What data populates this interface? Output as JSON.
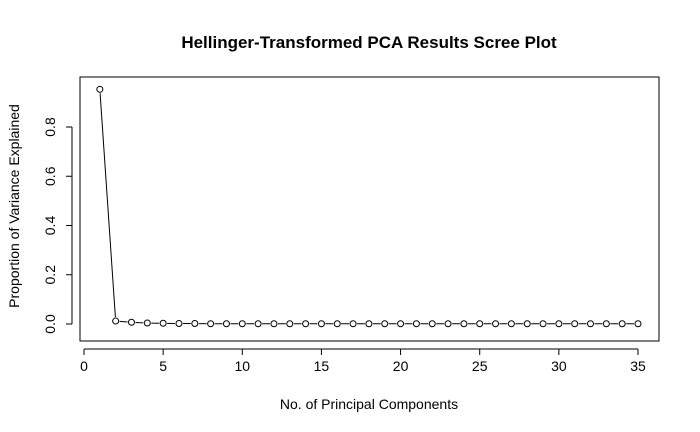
{
  "chart_data": {
    "type": "line",
    "title": "Hellinger-Transformed PCA Results Scree Plot",
    "xlabel": "No. of Principal Components",
    "ylabel": "Proportion of Variance Explained",
    "xlim": [
      0,
      35
    ],
    "ylim": [
      0,
      0.95
    ],
    "x_ticks": [
      0,
      5,
      10,
      15,
      20,
      25,
      30,
      35
    ],
    "y_ticks": [
      0.0,
      0.2,
      0.4,
      0.6,
      0.8
    ],
    "x_tick_labels": [
      "0",
      "5",
      "10",
      "15",
      "20",
      "25",
      "30",
      "35"
    ],
    "y_tick_labels": [
      "0.0",
      "0.2",
      "0.4",
      "0.6",
      "0.8"
    ],
    "grid": false,
    "marker": "open-circle",
    "line_color": "#000000",
    "x": [
      1,
      2,
      3,
      4,
      5,
      6,
      7,
      8,
      9,
      10,
      11,
      12,
      13,
      14,
      15,
      16,
      17,
      18,
      19,
      20,
      21,
      22,
      23,
      24,
      25,
      26,
      27,
      28,
      29,
      30,
      31,
      32,
      33,
      34,
      35
    ],
    "values": [
      0.953,
      0.012,
      0.007,
      0.004,
      0.003,
      0.002,
      0.002,
      0.001,
      0.001,
      0.001,
      0.001,
      0.001,
      0.001,
      0.001,
      0.001,
      0.001,
      0.001,
      0.001,
      0.001,
      0.001,
      0.001,
      0.001,
      0.001,
      0.001,
      0.001,
      0.001,
      0.001,
      0.001,
      0.001,
      0.001,
      0.001,
      0.001,
      0.001,
      0.001,
      0.001
    ]
  }
}
